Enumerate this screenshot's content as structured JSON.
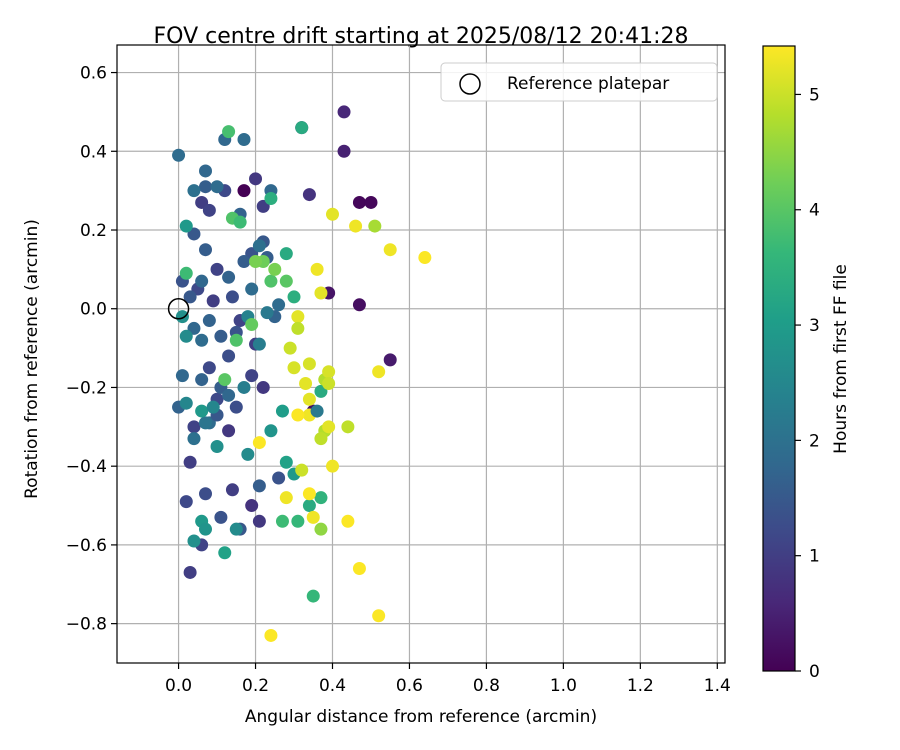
{
  "chart_data": {
    "type": "scatter",
    "title": "FOV centre drift starting at 2025/08/12 20:41:28",
    "xlabel": "Angular distance from reference (arcmin)",
    "ylabel": "Rotation from reference (arcmin)",
    "xlim": [
      -0.16,
      1.42
    ],
    "ylim": [
      -0.9,
      0.67
    ],
    "xticks": [
      0.0,
      0.2,
      0.4,
      0.6,
      0.8,
      1.0,
      1.2,
      1.4
    ],
    "xtick_labels": [
      "0.0",
      "0.2",
      "0.4",
      "0.6",
      "0.8",
      "1.0",
      "1.2",
      "1.4"
    ],
    "yticks": [
      0.6,
      0.4,
      0.2,
      0.0,
      -0.2,
      -0.4,
      -0.6,
      -0.8
    ],
    "ytick_labels": [
      "0.6",
      "0.4",
      "0.2",
      "0.0",
      "−0.2",
      "−0.4",
      "−0.6",
      "−0.8"
    ],
    "grid": true,
    "legend": {
      "placement": "top-right",
      "entries": [
        "Reference platepar"
      ]
    },
    "reference_point": {
      "x": 0.0,
      "y": 0.0
    },
    "colorbar": {
      "label": "Hours from first FF file",
      "range": [
        0,
        5.42
      ],
      "ticks": [
        0,
        1,
        2,
        3,
        4,
        5
      ],
      "tick_labels": [
        "0",
        "1",
        "2",
        "3",
        "4",
        "5"
      ],
      "colormap": [
        "#440154",
        "#482878",
        "#3e4989",
        "#31688e",
        "#26828e",
        "#1f9e89",
        "#35b779",
        "#6ece58",
        "#b5de2b",
        "#fde725"
      ]
    },
    "points": [
      [
        0.17,
        0.3,
        0.0
      ],
      [
        0.43,
        0.5,
        0.6
      ],
      [
        0.43,
        0.4,
        0.5
      ],
      [
        0.47,
        0.27,
        0.1
      ],
      [
        0.5,
        0.27,
        0.1
      ],
      [
        0.39,
        0.04,
        0.3
      ],
      [
        0.47,
        0.01,
        0.2
      ],
      [
        0.55,
        -0.13,
        0.4
      ],
      [
        0.35,
        -0.26,
        0.2
      ],
      [
        0.32,
        0.46,
        0.7
      ],
      [
        0.34,
        0.29,
        0.8
      ],
      [
        0.2,
        0.33,
        0.9
      ],
      [
        0.06,
        0.27,
        1.0
      ],
      [
        0.12,
        0.3,
        1.2
      ],
      [
        0.08,
        0.25,
        1.1
      ],
      [
        0.22,
        0.26,
        1.0
      ],
      [
        0.1,
        0.1,
        1.1
      ],
      [
        0.05,
        0.05,
        1.2
      ],
      [
        0.14,
        0.03,
        1.3
      ],
      [
        0.09,
        0.02,
        1.0
      ],
      [
        0.16,
        -0.03,
        1.1
      ],
      [
        0.2,
        -0.09,
        1.0
      ],
      [
        0.08,
        -0.15,
        1.2
      ],
      [
        0.13,
        -0.12,
        1.3
      ],
      [
        0.19,
        -0.17,
        1.1
      ],
      [
        0.22,
        -0.2,
        0.9
      ],
      [
        0.1,
        -0.23,
        1.2
      ],
      [
        0.15,
        -0.25,
        1.3
      ],
      [
        0.04,
        -0.3,
        1.1
      ],
      [
        0.13,
        -0.31,
        0.9
      ],
      [
        0.03,
        -0.39,
        1.0
      ],
      [
        0.19,
        -0.5,
        0.8
      ],
      [
        0.21,
        -0.54,
        0.9
      ],
      [
        0.14,
        -0.46,
        1.0
      ],
      [
        0.02,
        -0.49,
        1.2
      ],
      [
        0.06,
        -0.6,
        1.1
      ],
      [
        0.03,
        -0.67,
        1.0
      ],
      [
        0.07,
        -0.47,
        1.3
      ],
      [
        0.11,
        -0.53,
        1.4
      ],
      [
        0.16,
        -0.56,
        1.5
      ],
      [
        0.21,
        -0.45,
        1.6
      ],
      [
        0.26,
        -0.43,
        1.4
      ],
      [
        0.0,
        0.39,
        1.9
      ],
      [
        0.17,
        0.43,
        1.9
      ],
      [
        0.12,
        0.43,
        1.8
      ],
      [
        0.07,
        0.35,
        1.8
      ],
      [
        0.07,
        0.31,
        1.6
      ],
      [
        0.1,
        0.31,
        1.9
      ],
      [
        0.04,
        0.3,
        2.0
      ],
      [
        0.16,
        0.24,
        1.7
      ],
      [
        0.07,
        0.15,
        1.6
      ],
      [
        0.04,
        0.19,
        1.5
      ],
      [
        0.22,
        0.17,
        1.5
      ],
      [
        0.19,
        0.14,
        1.4
      ],
      [
        0.17,
        0.12,
        1.6
      ],
      [
        0.13,
        0.08,
        1.7
      ],
      [
        0.06,
        0.07,
        1.8
      ],
      [
        0.01,
        0.07,
        1.4
      ],
      [
        0.03,
        0.03,
        1.5
      ],
      [
        0.08,
        -0.03,
        1.7
      ],
      [
        0.04,
        -0.05,
        1.8
      ],
      [
        0.11,
        -0.07,
        1.6
      ],
      [
        0.15,
        -0.06,
        1.4
      ],
      [
        0.06,
        -0.08,
        1.9
      ],
      [
        0.01,
        -0.17,
        1.8
      ],
      [
        0.06,
        -0.18,
        1.7
      ],
      [
        0.11,
        -0.2,
        1.6
      ],
      [
        0.13,
        -0.22,
        1.8
      ],
      [
        0.0,
        -0.25,
        1.7
      ],
      [
        0.08,
        -0.29,
        1.9
      ],
      [
        0.1,
        -0.27,
        1.5
      ],
      [
        0.04,
        -0.33,
        2.0
      ],
      [
        0.07,
        -0.29,
        2.1
      ],
      [
        0.26,
        0.01,
        1.9
      ],
      [
        0.24,
        0.3,
        1.8
      ],
      [
        0.23,
        0.13,
        1.6
      ],
      [
        0.21,
        0.16,
        2.0
      ],
      [
        0.25,
        -0.02,
        1.7
      ],
      [
        0.19,
        0.05,
        1.9
      ],
      [
        0.23,
        -0.01,
        2.2
      ],
      [
        0.21,
        -0.09,
        2.3
      ],
      [
        0.18,
        -0.02,
        2.4
      ],
      [
        0.17,
        -0.2,
        2.3
      ],
      [
        0.18,
        -0.37,
        2.6
      ],
      [
        0.1,
        -0.35,
        2.7
      ],
      [
        0.24,
        -0.31,
        2.8
      ],
      [
        0.06,
        -0.26,
        2.9
      ],
      [
        0.09,
        -0.25,
        2.5
      ],
      [
        0.02,
        -0.07,
        2.6
      ],
      [
        0.01,
        -0.02,
        2.7
      ],
      [
        0.02,
        0.21,
        2.9
      ],
      [
        0.27,
        -0.26,
        3.0
      ],
      [
        0.3,
        -0.42,
        2.9
      ],
      [
        0.28,
        -0.39,
        3.1
      ],
      [
        0.06,
        -0.54,
        2.9
      ],
      [
        0.15,
        -0.56,
        2.6
      ],
      [
        0.04,
        -0.59,
        2.7
      ],
      [
        0.12,
        -0.62,
        3.1
      ],
      [
        0.07,
        -0.56,
        2.8
      ],
      [
        0.02,
        -0.24,
        2.5
      ],
      [
        0.32,
        0.46,
        3.3
      ],
      [
        0.24,
        0.28,
        3.4
      ],
      [
        0.28,
        0.14,
        3.3
      ],
      [
        0.3,
        0.03,
        3.4
      ],
      [
        0.34,
        -0.5,
        3.3
      ],
      [
        0.31,
        -0.54,
        3.6
      ],
      [
        0.27,
        -0.54,
        3.7
      ],
      [
        0.35,
        -0.73,
        3.6
      ],
      [
        0.37,
        -0.48,
        3.5
      ],
      [
        0.37,
        -0.21,
        3.3
      ],
      [
        0.13,
        0.45,
        3.8
      ],
      [
        0.14,
        0.23,
        3.9
      ],
      [
        0.16,
        0.22,
        3.7
      ],
      [
        0.02,
        0.09,
        3.7
      ],
      [
        0.24,
        0.07,
        3.9
      ],
      [
        0.28,
        0.07,
        4.0
      ],
      [
        0.19,
        -0.04,
        4.1
      ],
      [
        0.15,
        -0.08,
        3.9
      ],
      [
        0.12,
        -0.18,
        4.0
      ],
      [
        0.22,
        0.12,
        4.2
      ],
      [
        0.25,
        0.1,
        4.3
      ],
      [
        0.2,
        0.12,
        4.3
      ],
      [
        0.37,
        -0.56,
        4.5
      ],
      [
        0.51,
        0.21,
        4.7
      ],
      [
        0.38,
        -0.18,
        4.8
      ],
      [
        0.29,
        -0.1,
        5.0
      ],
      [
        0.3,
        -0.15,
        5.1
      ],
      [
        0.31,
        -0.02,
        5.2
      ],
      [
        0.34,
        -0.14,
        5.1
      ],
      [
        0.33,
        -0.19,
        5.2
      ],
      [
        0.34,
        -0.23,
        5.2
      ],
      [
        0.34,
        -0.27,
        5.3
      ],
      [
        0.36,
        0.1,
        5.3
      ],
      [
        0.37,
        0.04,
        5.2
      ],
      [
        0.39,
        -0.16,
        5.1
      ],
      [
        0.39,
        -0.19,
        5.0
      ],
      [
        0.4,
        0.24,
        5.2
      ],
      [
        0.46,
        0.21,
        5.3
      ],
      [
        0.55,
        0.15,
        5.3
      ],
      [
        0.64,
        0.13,
        5.4
      ],
      [
        0.52,
        -0.16,
        5.3
      ],
      [
        0.44,
        -0.3,
        4.9
      ],
      [
        0.38,
        -0.31,
        4.8
      ],
      [
        0.37,
        -0.33,
        4.9
      ],
      [
        0.39,
        -0.3,
        5.2
      ],
      [
        0.4,
        -0.4,
        5.3
      ],
      [
        0.32,
        -0.41,
        5.0
      ],
      [
        0.28,
        -0.48,
        5.3
      ],
      [
        0.34,
        -0.47,
        5.4
      ],
      [
        0.35,
        -0.53,
        5.3
      ],
      [
        0.44,
        -0.54,
        5.4
      ],
      [
        0.47,
        -0.66,
        5.4
      ],
      [
        0.52,
        -0.78,
        5.4
      ],
      [
        0.24,
        -0.83,
        5.4
      ],
      [
        0.21,
        -0.34,
        5.4
      ],
      [
        0.31,
        -0.27,
        5.4
      ],
      [
        0.31,
        -0.05,
        4.9
      ],
      [
        0.36,
        -0.26,
        2.2
      ]
    ]
  }
}
